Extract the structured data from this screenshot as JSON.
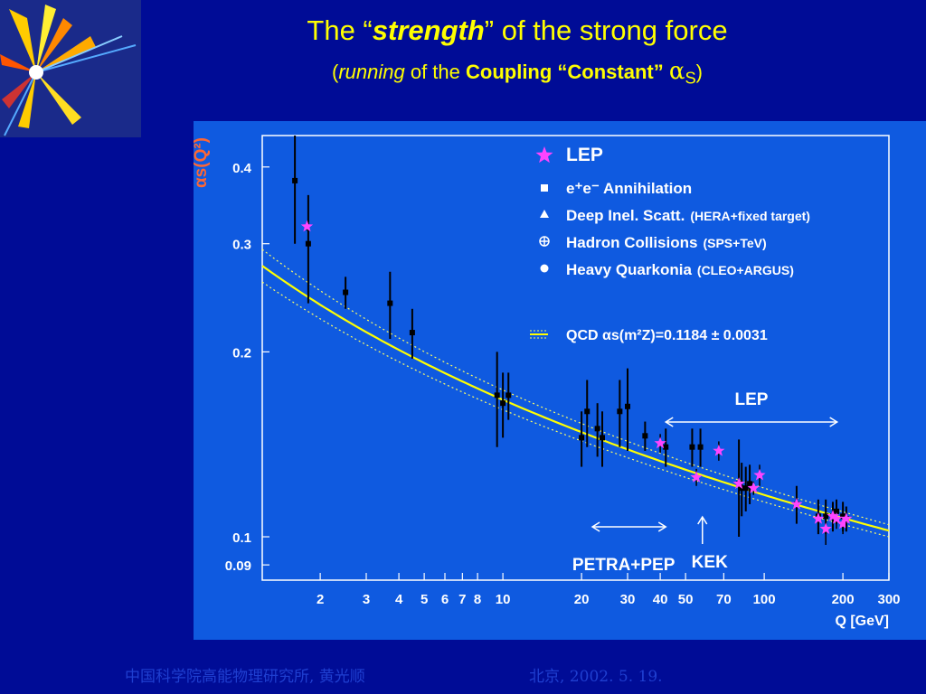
{
  "slide": {
    "title_pre": "The “",
    "title_bold": "strength",
    "title_post": "” of the strong force",
    "subtitle_pre": "(",
    "subtitle_running": "running",
    "subtitle_mid": " of the ",
    "subtitle_bold": "Coupling “Constant”",
    "subtitle_alpha": "α",
    "subtitle_sub": "S",
    "subtitle_end": ")",
    "footer_left": "中国科学院高能物理研究所, 黄光顺",
    "footer_right": "北京, 2002. 5. 19."
  },
  "colors": {
    "background": "#000c96",
    "plot_bg": "#0f5ae0",
    "title": "#ffff00",
    "fit": "#ffff00",
    "lep": "#ff44ff",
    "ylabel": "#ff6633"
  },
  "chart_data": {
    "type": "scatter",
    "xscale": "log",
    "yscale": "log",
    "xlim": [
      1.2,
      300
    ],
    "ylim": [
      0.085,
      0.45
    ],
    "xlabel": "Q [GeV]",
    "ylabel": "αs(Q²)",
    "xticks": [
      2,
      3,
      4,
      5,
      6,
      7,
      8,
      10,
      20,
      30,
      40,
      50,
      70,
      100,
      200,
      300
    ],
    "xtick_labels": [
      "2",
      "3",
      "4",
      "5",
      "6",
      "7",
      "8",
      "10",
      "20",
      "30",
      "40",
      "50",
      "70",
      "100",
      "200",
      "300"
    ],
    "yticks": [
      0.09,
      0.1,
      0.2,
      0.3,
      0.4
    ],
    "ytick_labels": [
      "0.09",
      "0.1",
      "0.2",
      "0.3",
      "0.4"
    ],
    "legend": [
      {
        "marker": "star",
        "label": "LEP"
      },
      {
        "marker": "square",
        "label": "e⁺e⁻ Annihilation"
      },
      {
        "marker": "triangle",
        "label": "Deep Inel. Scatt.",
        "note": "(HERA+fixed target)"
      },
      {
        "marker": "cross",
        "label": "Hadron Collisions",
        "note": "(SPS+TeV)"
      },
      {
        "marker": "circle",
        "label": "Heavy Quarkonia",
        "note": "(CLEO+ARGUS)"
      }
    ],
    "qcd_fit": {
      "label": "QCD αs(m²Z)=0.1184 ± 0.0031",
      "alphas_mz": 0.1184,
      "uncertainty": 0.0031,
      "mz": 91.19
    },
    "annotations": [
      {
        "text": "LEP",
        "arrow_from_x": 42,
        "arrow_to_x": 190
      },
      {
        "text": "PETRA+PEP",
        "arrow_from_x": 22,
        "arrow_to_x": 42
      },
      {
        "text": "KEK",
        "arrow_x": 58
      }
    ],
    "series": [
      {
        "name": "LEP",
        "marker": "star",
        "x": [
          1.78,
          40,
          55,
          67,
          80,
          91,
          96,
          133,
          161,
          172,
          183,
          189,
          200,
          206
        ],
        "y": [
          0.32,
          0.142,
          0.125,
          0.138,
          0.122,
          0.12,
          0.126,
          0.113,
          0.107,
          0.103,
          0.108,
          0.107,
          0.105,
          0.107
        ],
        "err": [
          0.005,
          0.005,
          0.004,
          0.005,
          0.005,
          0.003,
          0.005,
          0.006,
          0.006,
          0.006,
          0.005,
          0.004,
          0.004,
          0.005
        ]
      },
      {
        "name": "e+e- Annihilation",
        "marker": "square",
        "x": [
          1.6,
          1.8,
          2.5,
          3.7,
          4.5,
          9.5,
          10,
          10.5,
          20,
          21,
          23,
          24,
          28,
          30,
          35,
          42,
          53,
          57,
          80,
          82,
          85,
          88,
          133,
          161,
          172,
          183,
          189,
          200,
          206
        ],
        "y": [
          0.38,
          0.3,
          0.25,
          0.24,
          0.215,
          0.17,
          0.165,
          0.17,
          0.145,
          0.16,
          0.15,
          0.145,
          0.16,
          0.163,
          0.146,
          0.14,
          0.14,
          0.14,
          0.122,
          0.12,
          0.12,
          0.122,
          0.113,
          0.108,
          0.108,
          0.108,
          0.11,
          0.108,
          0.107
        ],
        "err": [
          0.08,
          0.06,
          0.015,
          0.03,
          0.02,
          0.03,
          0.02,
          0.015,
          0.015,
          0.02,
          0.015,
          0.015,
          0.02,
          0.025,
          0.008,
          0.01,
          0.01,
          0.01,
          0.022,
          0.012,
          0.01,
          0.009,
          0.008,
          0.007,
          0.007,
          0.006,
          0.005,
          0.006,
          0.005
        ]
      }
    ]
  }
}
